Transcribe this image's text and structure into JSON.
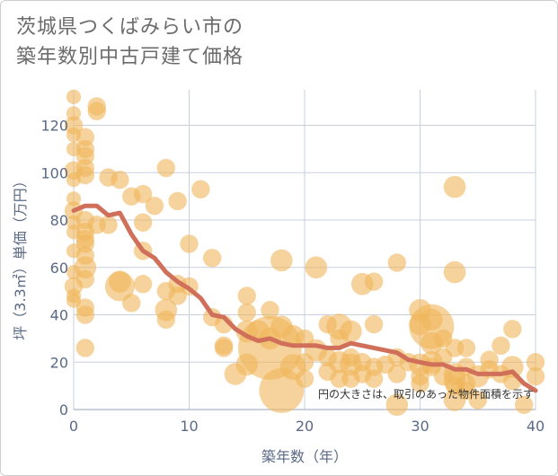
{
  "title_line1": "茨城県つくばみらい市の",
  "title_line2": "築年数別中古戸建て価格",
  "chart_data": {
    "type": "scatter",
    "xlabel": "築年数（年）",
    "ylabel": "坪（3.3㎡）単価（万円）",
    "xlim": [
      0,
      40
    ],
    "ylim": [
      0,
      135
    ],
    "x_ticks": [
      "0",
      "10",
      "20",
      "30",
      "40"
    ],
    "y_ticks": [
      "0",
      "20",
      "40",
      "60",
      "80",
      "100",
      "120"
    ],
    "grid": true,
    "note": "円の大きさは、取引のあった物件面積を示す",
    "colors": {
      "bubble": "#f0b55a",
      "trend": "#d0705a",
      "grid": "#c7d0df"
    },
    "points": [
      [
        0,
        132,
        1
      ],
      [
        0,
        125,
        1
      ],
      [
        0,
        120,
        2
      ],
      [
        0,
        116,
        1
      ],
      [
        0,
        110,
        1
      ],
      [
        0,
        101,
        2
      ],
      [
        0,
        97,
        1
      ],
      [
        0,
        89,
        1
      ],
      [
        0,
        84,
        2
      ],
      [
        0,
        79,
        1
      ],
      [
        0,
        75,
        1
      ],
      [
        0,
        67,
        1
      ],
      [
        0,
        58,
        1
      ],
      [
        0,
        52,
        2
      ],
      [
        0,
        48,
        1
      ],
      [
        0,
        46,
        1
      ],
      [
        1,
        115,
        2
      ],
      [
        1,
        110,
        2
      ],
      [
        1,
        107,
        2
      ],
      [
        1,
        102,
        2
      ],
      [
        1,
        99,
        2
      ],
      [
        1,
        80,
        2
      ],
      [
        1,
        75,
        2
      ],
      [
        1,
        72,
        2
      ],
      [
        1,
        70,
        2
      ],
      [
        1,
        65,
        2
      ],
      [
        1,
        60,
        3
      ],
      [
        1,
        55,
        2
      ],
      [
        1,
        43,
        2
      ],
      [
        1,
        40,
        2
      ],
      [
        1,
        26,
        2
      ],
      [
        2,
        128,
        2
      ],
      [
        2,
        126,
        2
      ],
      [
        2,
        78,
        2
      ],
      [
        3,
        98,
        2
      ],
      [
        3,
        78,
        2
      ],
      [
        4,
        97,
        2
      ],
      [
        4,
        54,
        3
      ],
      [
        4,
        52,
        5
      ],
      [
        5,
        90,
        2
      ],
      [
        5,
        45,
        2
      ],
      [
        6,
        91,
        2
      ],
      [
        6,
        79,
        2
      ],
      [
        6,
        67,
        2
      ],
      [
        6,
        53,
        2
      ],
      [
        7,
        86,
        2
      ],
      [
        8,
        102,
        2
      ],
      [
        8,
        50,
        2
      ],
      [
        8,
        42,
        3
      ],
      [
        8,
        38,
        2
      ],
      [
        9,
        88,
        2
      ],
      [
        9,
        53,
        2
      ],
      [
        9,
        48,
        2
      ],
      [
        10,
        70,
        2
      ],
      [
        10,
        52,
        2
      ],
      [
        11,
        93,
        2
      ],
      [
        12,
        64,
        2
      ],
      [
        12,
        39,
        2
      ],
      [
        13,
        36,
        2
      ],
      [
        13,
        27,
        2
      ],
      [
        13,
        26,
        2
      ],
      [
        14,
        15,
        3
      ],
      [
        15,
        48,
        2
      ],
      [
        15,
        41,
        2
      ],
      [
        15,
        33,
        3
      ],
      [
        15,
        19,
        3
      ],
      [
        16,
        33,
        3
      ],
      [
        17,
        30,
        3
      ],
      [
        17,
        26,
        14
      ],
      [
        17,
        42,
        2
      ],
      [
        18,
        63,
        3
      ],
      [
        18,
        8,
        9
      ],
      [
        18,
        35,
        3
      ],
      [
        19,
        31,
        3
      ],
      [
        19,
        18,
        4
      ],
      [
        20,
        30,
        2
      ],
      [
        20,
        20,
        2
      ],
      [
        20,
        13,
        2
      ],
      [
        21,
        60,
        3
      ],
      [
        21,
        25,
        3
      ],
      [
        22,
        36,
        2
      ],
      [
        22,
        22,
        2
      ],
      [
        22,
        16,
        2
      ],
      [
        23,
        35,
        4
      ],
      [
        23,
        30,
        2
      ],
      [
        23,
        20,
        3
      ],
      [
        23,
        13,
        2
      ],
      [
        24,
        33,
        3
      ],
      [
        24,
        22,
        2
      ],
      [
        24,
        19,
        3
      ],
      [
        24,
        13,
        2
      ],
      [
        25,
        53,
        3
      ],
      [
        25,
        20,
        2
      ],
      [
        25,
        15,
        2
      ],
      [
        26,
        54,
        2
      ],
      [
        26,
        36,
        2
      ],
      [
        26,
        18,
        2
      ],
      [
        26,
        13,
        2
      ],
      [
        27,
        19,
        2
      ],
      [
        28,
        62,
        2
      ],
      [
        28,
        22,
        2
      ],
      [
        28,
        15,
        2
      ],
      [
        28,
        2,
        3
      ],
      [
        29,
        20,
        2
      ],
      [
        30,
        42,
        3
      ],
      [
        30,
        36,
        3
      ],
      [
        30,
        19,
        3
      ],
      [
        30,
        14,
        2
      ],
      [
        30,
        11,
        2
      ],
      [
        31,
        38,
        3
      ],
      [
        31,
        35,
        9
      ],
      [
        31,
        28,
        3
      ],
      [
        31,
        20,
        3
      ],
      [
        31,
        18,
        2
      ],
      [
        32,
        30,
        2
      ],
      [
        32,
        22,
        2
      ],
      [
        32,
        14,
        2
      ],
      [
        33,
        94,
        3
      ],
      [
        33,
        58,
        3
      ],
      [
        33,
        26,
        2
      ],
      [
        33,
        15,
        3
      ],
      [
        33,
        12,
        3
      ],
      [
        33,
        10,
        2
      ],
      [
        33,
        4,
        3
      ],
      [
        34,
        26,
        2
      ],
      [
        34,
        18,
        2
      ],
      [
        34,
        11,
        2
      ],
      [
        34,
        8,
        2
      ],
      [
        35,
        14,
        3
      ],
      [
        35,
        4,
        2
      ],
      [
        36,
        21,
        2
      ],
      [
        36,
        17,
        2
      ],
      [
        37,
        27,
        2
      ],
      [
        37,
        15,
        2
      ],
      [
        38,
        34,
        2
      ],
      [
        38,
        18,
        3
      ],
      [
        38,
        12,
        2
      ],
      [
        39,
        2,
        2
      ],
      [
        40,
        20,
        2
      ],
      [
        40,
        14,
        2
      ]
    ],
    "trend": [
      [
        0,
        84
      ],
      [
        1,
        86
      ],
      [
        2,
        86
      ],
      [
        3,
        82
      ],
      [
        4,
        83
      ],
      [
        5,
        74
      ],
      [
        6,
        67
      ],
      [
        7,
        64
      ],
      [
        8,
        58
      ],
      [
        9,
        54
      ],
      [
        10,
        51
      ],
      [
        11,
        47
      ],
      [
        12,
        40
      ],
      [
        13,
        39
      ],
      [
        14,
        34
      ],
      [
        15,
        31
      ],
      [
        16,
        29
      ],
      [
        17,
        30
      ],
      [
        18,
        28
      ],
      [
        19,
        27
      ],
      [
        20,
        27
      ],
      [
        21,
        27
      ],
      [
        22,
        26
      ],
      [
        23,
        26
      ],
      [
        24,
        28
      ],
      [
        25,
        27
      ],
      [
        26,
        26
      ],
      [
        27,
        25
      ],
      [
        28,
        24
      ],
      [
        29,
        21
      ],
      [
        30,
        20
      ],
      [
        31,
        19
      ],
      [
        32,
        19
      ],
      [
        33,
        17
      ],
      [
        34,
        17
      ],
      [
        35,
        15
      ],
      [
        36,
        15
      ],
      [
        37,
        15
      ],
      [
        38,
        16
      ],
      [
        39,
        11
      ],
      [
        40,
        8
      ]
    ]
  }
}
